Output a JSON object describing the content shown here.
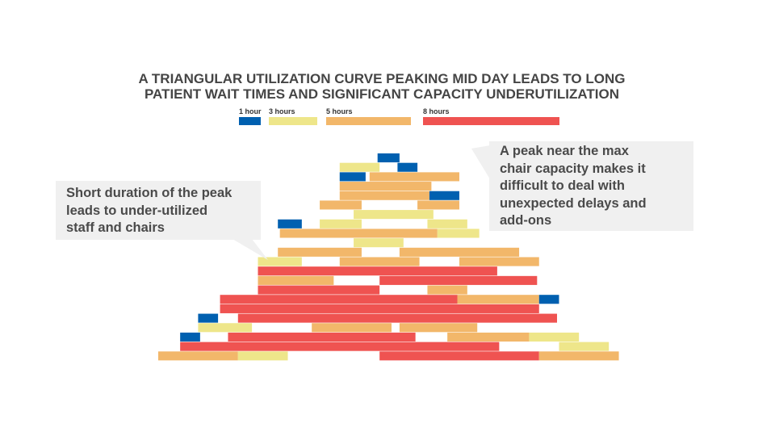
{
  "title": {
    "line1": "A TRIANGULAR UTILIZATION CURVE PEAKING MID DAY LEADS TO LONG",
    "line2": "PATIENT WAIT TIMES AND SIGNIFICANT CAPACITY UNDERUTILIZATION"
  },
  "legend": [
    {
      "label": "1 hour",
      "duration": 1,
      "color": "#0060B0"
    },
    {
      "label": "3 hours",
      "duration": 3,
      "color": "#EEE68A"
    },
    {
      "label": "5 hours",
      "duration": 5,
      "color": "#F2B76A"
    },
    {
      "label": "8 hours",
      "duration": 8,
      "color": "#EF5351"
    }
  ],
  "callouts": {
    "left": {
      "lines": [
        "Short duration of the peak",
        "leads to under-utilized",
        "staff and chairs"
      ]
    },
    "right": {
      "lines": [
        "A peak near the max",
        "chair capacity makes it",
        "difficult to deal with",
        "unexpected delays and",
        "add-ons"
      ]
    }
  },
  "chart_data": {
    "type": "bar",
    "orientation": "horizontal-gantt",
    "title": "A TRIANGULAR UTILIZATION CURVE PEAKING MID DAY LEADS TO LONG PATIENT WAIT TIMES AND SIGNIFICANT CAPACITY UNDERUTILIZATION",
    "xlabel": "",
    "ylabel": "",
    "grid": false,
    "legend_position": "top",
    "units": "hours",
    "rows": [
      [
        {
          "d": 1,
          "start": 11.0,
          "end": 12.1
        }
      ],
      [
        {
          "d": 3,
          "start": 9.1,
          "end": 11.1
        },
        {
          "d": 1,
          "start": 12.0,
          "end": 13.0
        }
      ],
      [
        {
          "d": 1,
          "start": 9.1,
          "end": 10.4
        },
        {
          "d": 5,
          "start": 10.6,
          "end": 15.1
        }
      ],
      [
        {
          "d": 5,
          "start": 9.1,
          "end": 13.7
        }
      ],
      [
        {
          "d": 5,
          "start": 9.1,
          "end": 13.6
        },
        {
          "d": 1,
          "start": 13.6,
          "end": 15.1
        }
      ],
      [
        {
          "d": 5,
          "start": 8.1,
          "end": 10.2
        },
        {
          "d": 5,
          "start": 13.0,
          "end": 15.1
        }
      ],
      [
        {
          "d": 3,
          "start": 9.8,
          "end": 13.8
        }
      ],
      [
        {
          "d": 1,
          "start": 6.0,
          "end": 7.2
        },
        {
          "d": 3,
          "start": 8.1,
          "end": 10.2
        },
        {
          "d": 3,
          "start": 13.5,
          "end": 15.5
        }
      ],
      [
        {
          "d": 5,
          "start": 6.1,
          "end": 14.0
        },
        {
          "d": 3,
          "start": 14.0,
          "end": 16.1
        }
      ],
      [
        {
          "d": 3,
          "start": 9.8,
          "end": 12.3
        }
      ],
      [
        {
          "d": 5,
          "start": 6.0,
          "end": 10.2
        },
        {
          "d": 5,
          "start": 12.1,
          "end": 18.1
        }
      ],
      [
        {
          "d": 3,
          "start": 5.0,
          "end": 7.2
        },
        {
          "d": 5,
          "start": 9.1,
          "end": 13.1
        },
        {
          "d": 5,
          "start": 15.1,
          "end": 19.1
        }
      ],
      [
        {
          "d": 8,
          "start": 5.0,
          "end": 17.0
        }
      ],
      [
        {
          "d": 5,
          "start": 5.0,
          "end": 8.8
        },
        {
          "d": 8,
          "start": 11.1,
          "end": 19.0
        }
      ],
      [
        {
          "d": 8,
          "start": 5.0,
          "end": 11.1
        },
        {
          "d": 5,
          "start": 13.5,
          "end": 15.5
        }
      ],
      [
        {
          "d": 8,
          "start": 3.1,
          "end": 15.0
        },
        {
          "d": 5,
          "start": 15.0,
          "end": 19.1
        },
        {
          "d": 1,
          "start": 19.1,
          "end": 20.1
        }
      ],
      [
        {
          "d": 8,
          "start": 3.1,
          "end": 19.1
        }
      ],
      [
        {
          "d": 1,
          "start": 2.0,
          "end": 3.0
        },
        {
          "d": 8,
          "start": 4.0,
          "end": 20.0
        }
      ],
      [
        {
          "d": 3,
          "start": 2.0,
          "end": 4.7
        },
        {
          "d": 5,
          "start": 7.7,
          "end": 11.7
        },
        {
          "d": 5,
          "start": 12.1,
          "end": 16.0
        }
      ],
      [
        {
          "d": 1,
          "start": 1.1,
          "end": 2.1
        },
        {
          "d": 8,
          "start": 3.5,
          "end": 12.9
        },
        {
          "d": 5,
          "start": 14.5,
          "end": 18.6
        },
        {
          "d": 3,
          "start": 18.6,
          "end": 21.1
        }
      ],
      [
        {
          "d": 8,
          "start": 1.1,
          "end": 17.1
        },
        {
          "d": 3,
          "start": 20.1,
          "end": 22.6
        }
      ],
      [
        {
          "d": 5,
          "start": 0.0,
          "end": 4.0
        },
        {
          "d": 3,
          "start": 4.0,
          "end": 6.5
        },
        {
          "d": 8,
          "start": 11.1,
          "end": 19.1
        },
        {
          "d": 5,
          "start": 19.1,
          "end": 23.1
        }
      ]
    ]
  }
}
